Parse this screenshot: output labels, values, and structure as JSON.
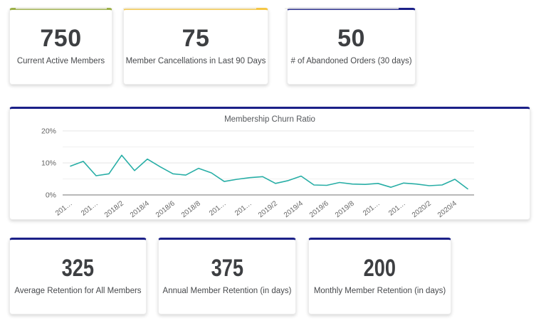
{
  "kpi_top": [
    {
      "value": "750",
      "label": "Current Active Members",
      "accent": "#9cb048"
    },
    {
      "value": "75",
      "label": "Member Cancellations in Last 90 Days",
      "accent": "#f5c644"
    },
    {
      "value": "50",
      "label": "# of Abandoned Orders (30 days)",
      "accent": "#1b2088"
    }
  ],
  "kpi_bottom": [
    {
      "value": "325",
      "label": "Average Retention for All Members",
      "accent": "#1b2088"
    },
    {
      "value": "375",
      "label": "Annual Member Retention (in days)",
      "accent": "#1b2088"
    },
    {
      "value": "200",
      "label": "Monthly Member Retention (in days)",
      "accent": "#1b2088"
    }
  ],
  "chart_data": {
    "type": "line",
    "title": "Membership Churn Ratio",
    "unit": "%",
    "ylim": [
      0,
      20
    ],
    "ytick_labels": [
      "0%",
      "10%",
      "20%"
    ],
    "yticks": [
      0,
      10,
      20
    ],
    "gridlines": [
      0,
      5,
      10,
      15,
      20
    ],
    "grid_on": true,
    "legend": "none",
    "line_color": "#28aea6",
    "x_tick_labels": [
      "201…",
      "201…",
      "2018/2",
      "2018/4",
      "2018/6",
      "2018/8",
      "201…",
      "201…",
      "2019/2",
      "2019/4",
      "2019/6",
      "2019/8",
      "201…",
      "201…",
      "2020/2",
      "2020/4"
    ],
    "label_every_n_points": 2,
    "values": [
      9,
      10.5,
      6,
      6.6,
      12.4,
      7.6,
      11.2,
      8.8,
      6.6,
      6.2,
      8.3,
      6.9,
      4.2,
      4.9,
      5.4,
      5.7,
      3.6,
      4.5,
      5.9,
      3.1,
      3,
      3.9,
      3.4,
      3.3,
      3.6,
      2.4,
      3.7,
      3.4,
      2.9,
      3.1,
      4.9,
      1.9
    ]
  }
}
